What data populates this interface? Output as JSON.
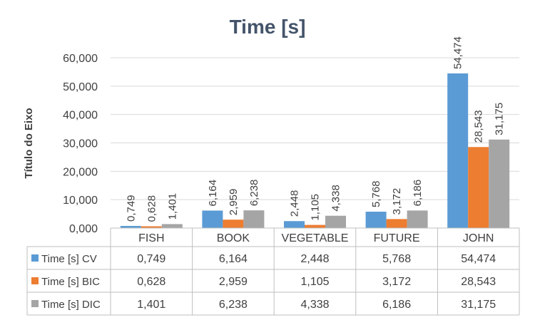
{
  "chart_data": {
    "type": "bar",
    "title": "Time [s]",
    "ylabel": "Título do Eixo",
    "ylim": [
      0,
      60
    ],
    "yticks": [
      "0,000",
      "10,000",
      "20,000",
      "30,000",
      "40,000",
      "50,000",
      "60,000"
    ],
    "categories": [
      "FISH",
      "BOOK",
      "VEGETABLE",
      "FUTURE",
      "JOHN"
    ],
    "grid": true,
    "legend": "data-table",
    "series": [
      {
        "name": "Time [s] CV",
        "color": "#5b9bd5",
        "values": [
          0.749,
          6.164,
          2.448,
          5.768,
          54.474
        ],
        "labels": [
          "0,749",
          "6,164",
          "2,448",
          "5,768",
          "54,474"
        ]
      },
      {
        "name": "Time [s] BIC",
        "color": "#ed7d31",
        "values": [
          0.628,
          2.959,
          1.105,
          3.172,
          28.543
        ],
        "labels": [
          "0,628",
          "2,959",
          "1,105",
          "3,172",
          "28,543"
        ]
      },
      {
        "name": "Time [s] DIC",
        "color": "#a5a5a5",
        "values": [
          1.401,
          6.238,
          4.338,
          6.186,
          31.175
        ],
        "labels": [
          "1,401",
          "6,238",
          "4,338",
          "6,186",
          "31,175"
        ]
      }
    ]
  }
}
